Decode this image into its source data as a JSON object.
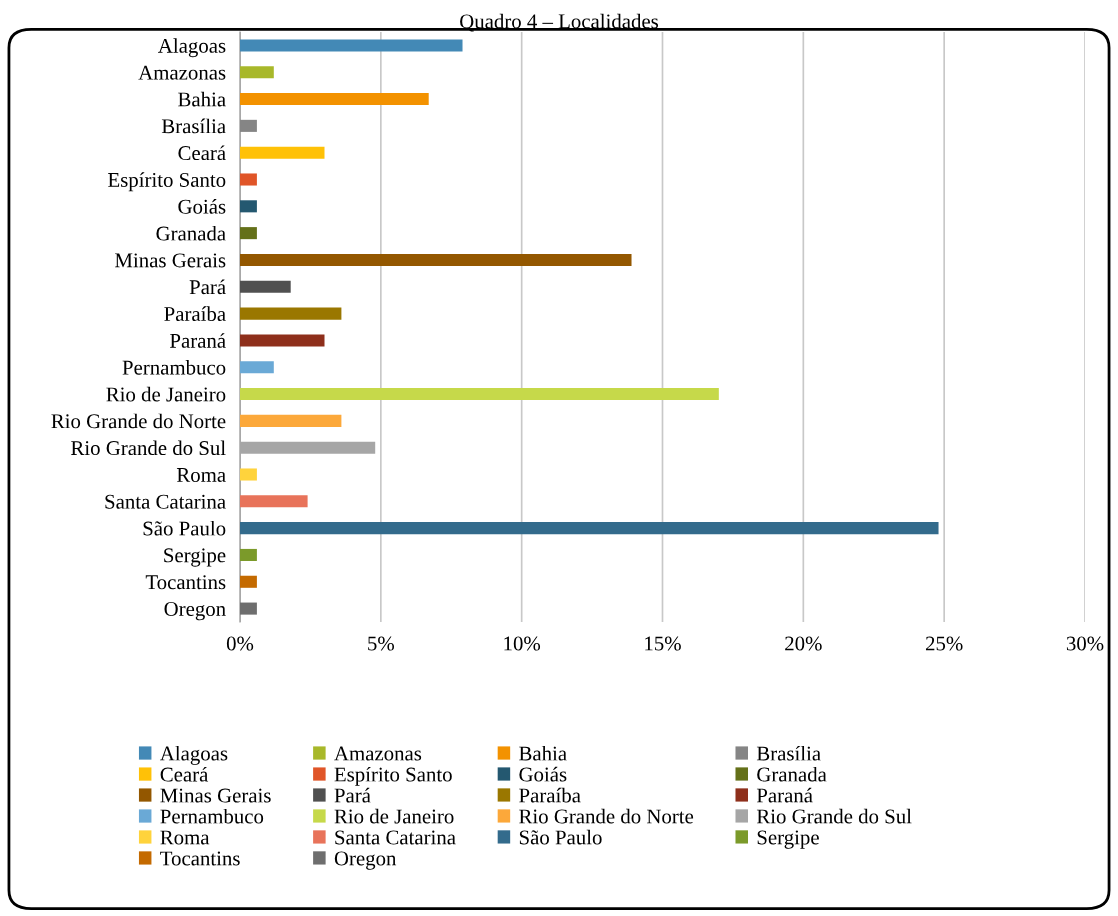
{
  "chart_data": {
    "type": "bar",
    "orientation": "horizontal",
    "stacked": true,
    "title": "Quadro 4 – Localidades",
    "categories": [
      "Alagoas",
      "Amazonas",
      "Bahia",
      "Brasília",
      "Ceará",
      "Espírito Santo",
      "Goiás",
      "Granada",
      "Minas Gerais",
      "Pará",
      "Paraíba",
      "Paraná",
      "Pernambuco",
      "Rio de Janeiro",
      "Rio Grande do Norte",
      "Rio Grande do Sul",
      "Roma",
      "Santa Catarina",
      "São Paulo",
      "Sergipe",
      "Tocantins",
      "Oregon"
    ],
    "series": [
      {
        "name": "Alagoas",
        "color": "#4389b6",
        "values": [
          7.9,
          null,
          null,
          null,
          null,
          null,
          null,
          null,
          null,
          null,
          null,
          null,
          null,
          null,
          null,
          null,
          null,
          null,
          null,
          null,
          null,
          null
        ]
      },
      {
        "name": "Amazonas",
        "color": "#a8b82a",
        "values": [
          null,
          1.2,
          null,
          null,
          null,
          null,
          null,
          null,
          null,
          null,
          null,
          null,
          null,
          null,
          null,
          null,
          null,
          null,
          null,
          null,
          null,
          null
        ]
      },
      {
        "name": "Bahia",
        "color": "#f39200",
        "values": [
          null,
          null,
          6.7,
          null,
          null,
          null,
          null,
          null,
          null,
          null,
          null,
          null,
          null,
          null,
          null,
          null,
          null,
          null,
          null,
          null,
          null,
          null
        ]
      },
      {
        "name": "Brasília",
        "color": "#858585",
        "values": [
          null,
          null,
          null,
          0.6,
          null,
          null,
          null,
          null,
          null,
          null,
          null,
          null,
          null,
          null,
          null,
          null,
          null,
          null,
          null,
          null,
          null,
          null
        ]
      },
      {
        "name": "Ceará",
        "color": "#ffc107",
        "values": [
          null,
          null,
          null,
          null,
          3.0,
          null,
          null,
          null,
          null,
          null,
          null,
          null,
          null,
          null,
          null,
          null,
          null,
          null,
          null,
          null,
          null,
          null
        ]
      },
      {
        "name": "Espírito Santo",
        "color": "#e05528",
        "values": [
          null,
          null,
          null,
          null,
          null,
          0.6,
          null,
          null,
          null,
          null,
          null,
          null,
          null,
          null,
          null,
          null,
          null,
          null,
          null,
          null,
          null,
          null
        ]
      },
      {
        "name": "Goiás",
        "color": "#245870",
        "values": [
          null,
          null,
          null,
          null,
          null,
          null,
          0.6,
          null,
          null,
          null,
          null,
          null,
          null,
          null,
          null,
          null,
          null,
          null,
          null,
          null,
          null,
          null
        ]
      },
      {
        "name": "Granada",
        "color": "#647019",
        "values": [
          null,
          null,
          null,
          null,
          null,
          null,
          null,
          0.6,
          null,
          null,
          null,
          null,
          null,
          null,
          null,
          null,
          null,
          null,
          null,
          null,
          null,
          null
        ]
      },
      {
        "name": "Minas Gerais",
        "color": "#935700",
        "values": [
          null,
          null,
          null,
          null,
          null,
          null,
          null,
          null,
          13.9,
          null,
          null,
          null,
          null,
          null,
          null,
          null,
          null,
          null,
          null,
          null,
          null,
          null
        ]
      },
      {
        "name": "Pará",
        "color": "#505050",
        "values": [
          null,
          null,
          null,
          null,
          null,
          null,
          null,
          null,
          null,
          1.8,
          null,
          null,
          null,
          null,
          null,
          null,
          null,
          null,
          null,
          null,
          null,
          null
        ]
      },
      {
        "name": "Paraíba",
        "color": "#9a7700",
        "values": [
          null,
          null,
          null,
          null,
          null,
          null,
          null,
          null,
          null,
          null,
          3.6,
          null,
          null,
          null,
          null,
          null,
          null,
          null,
          null,
          null,
          null,
          null
        ]
      },
      {
        "name": "Paraná",
        "color": "#8e2f1b",
        "values": [
          null,
          null,
          null,
          null,
          null,
          null,
          null,
          null,
          null,
          null,
          null,
          3.0,
          null,
          null,
          null,
          null,
          null,
          null,
          null,
          null,
          null,
          null
        ]
      },
      {
        "name": "Pernambuco",
        "color": "#6aa9d6",
        "values": [
          null,
          null,
          null,
          null,
          null,
          null,
          null,
          null,
          null,
          null,
          null,
          null,
          1.2,
          null,
          null,
          null,
          null,
          null,
          null,
          null,
          null,
          null
        ]
      },
      {
        "name": "Rio de Janeiro",
        "color": "#c6d94a",
        "values": [
          null,
          null,
          null,
          null,
          null,
          null,
          null,
          null,
          null,
          null,
          null,
          null,
          null,
          17.0,
          null,
          null,
          null,
          null,
          null,
          null,
          null,
          null
        ]
      },
      {
        "name": "Rio Grande do Norte",
        "color": "#fca83a",
        "values": [
          null,
          null,
          null,
          null,
          null,
          null,
          null,
          null,
          null,
          null,
          null,
          null,
          null,
          null,
          3.6,
          null,
          null,
          null,
          null,
          null,
          null,
          null
        ]
      },
      {
        "name": "Rio Grande do Sul",
        "color": "#a6a6a6",
        "values": [
          null,
          null,
          null,
          null,
          null,
          null,
          null,
          null,
          null,
          null,
          null,
          null,
          null,
          null,
          null,
          4.8,
          null,
          null,
          null,
          null,
          null,
          null
        ]
      },
      {
        "name": "Roma",
        "color": "#ffd33c",
        "values": [
          null,
          null,
          null,
          null,
          null,
          null,
          null,
          null,
          null,
          null,
          null,
          null,
          null,
          null,
          null,
          null,
          0.6,
          null,
          null,
          null,
          null,
          null
        ]
      },
      {
        "name": "Santa Catarina",
        "color": "#e8735a",
        "values": [
          null,
          null,
          null,
          null,
          null,
          null,
          null,
          null,
          null,
          null,
          null,
          null,
          null,
          null,
          null,
          null,
          null,
          2.4,
          null,
          null,
          null,
          null
        ]
      },
      {
        "name": "São Paulo",
        "color": "#336b8c",
        "values": [
          null,
          null,
          null,
          null,
          null,
          null,
          null,
          null,
          null,
          null,
          null,
          null,
          null,
          null,
          null,
          null,
          null,
          null,
          24.8,
          null,
          null,
          null
        ]
      },
      {
        "name": "Sergipe",
        "color": "#7b9a2a",
        "values": [
          null,
          null,
          null,
          null,
          null,
          null,
          null,
          null,
          null,
          null,
          null,
          null,
          null,
          null,
          null,
          null,
          null,
          null,
          null,
          0.6,
          null,
          null
        ]
      },
      {
        "name": "Tocantins",
        "color": "#c46a00",
        "values": [
          null,
          null,
          null,
          null,
          null,
          null,
          null,
          null,
          null,
          null,
          null,
          null,
          null,
          null,
          null,
          null,
          null,
          null,
          null,
          null,
          0.6,
          null
        ]
      },
      {
        "name": "Oregon",
        "color": "#6e6e6e",
        "values": [
          null,
          null,
          null,
          null,
          null,
          null,
          null,
          null,
          null,
          null,
          null,
          null,
          null,
          null,
          null,
          null,
          null,
          null,
          null,
          null,
          null,
          0.6
        ]
      }
    ],
    "xlim": [
      0,
      30
    ],
    "xticks": [
      {
        "value": 0,
        "label": "0%"
      },
      {
        "value": 5,
        "label": "5%"
      },
      {
        "value": 10,
        "label": "10%"
      },
      {
        "value": 15,
        "label": "15%"
      },
      {
        "value": 20,
        "label": "20%"
      },
      {
        "value": 25,
        "label": "25%"
      },
      {
        "value": 30,
        "label": "30%"
      }
    ],
    "grid": "x",
    "legend": "bottom"
  }
}
